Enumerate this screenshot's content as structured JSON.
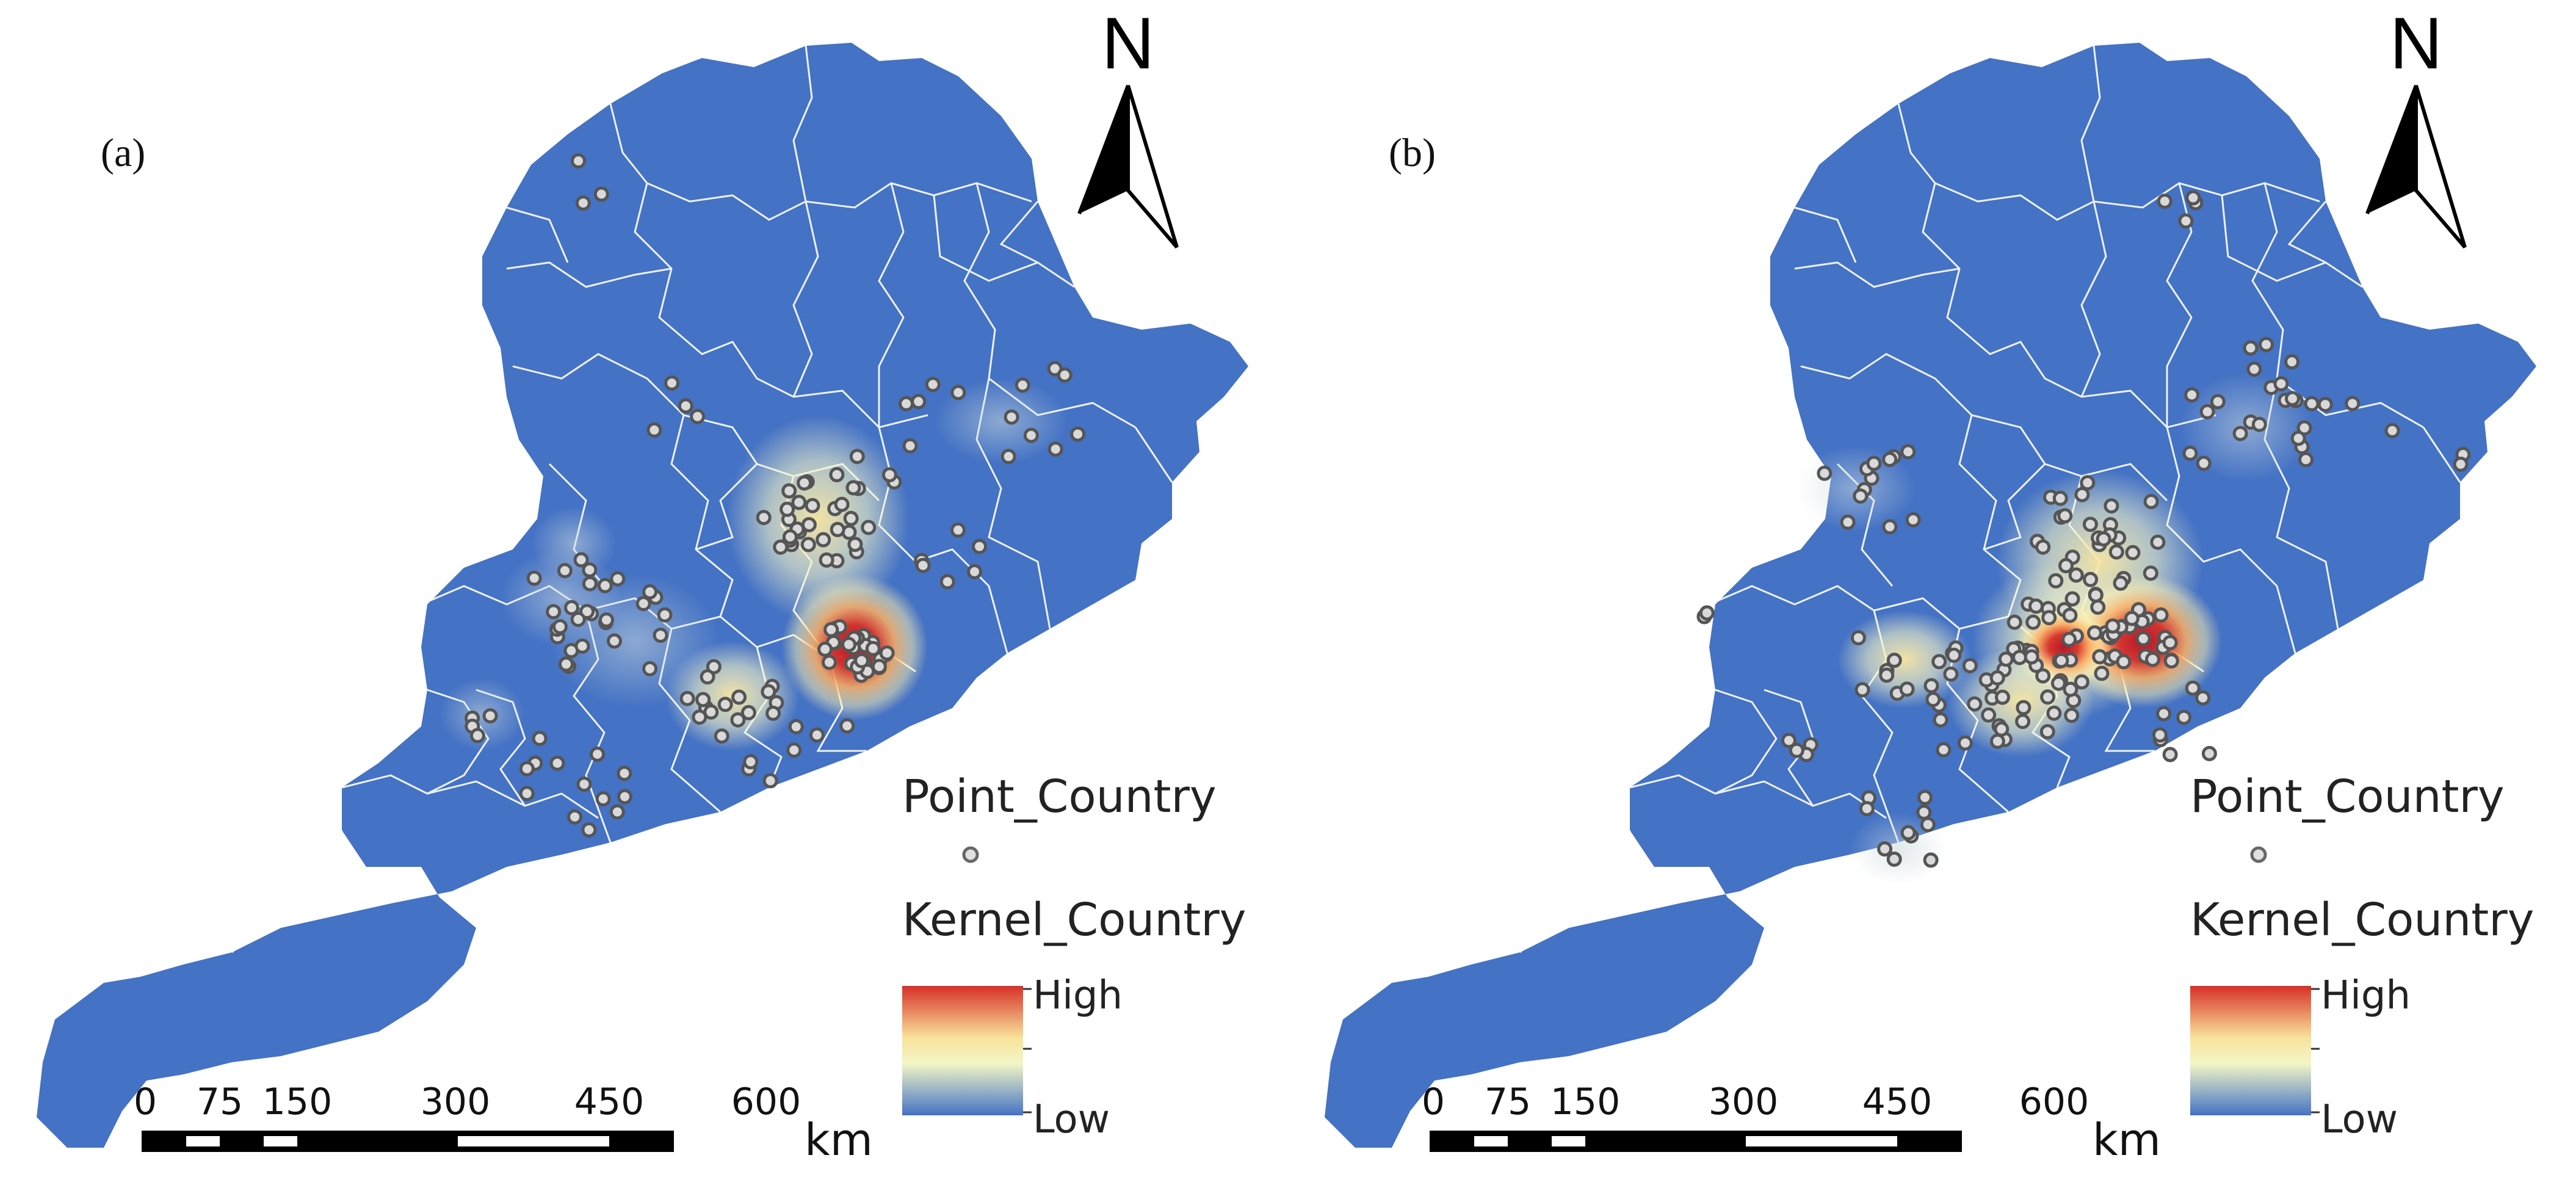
{
  "colors": {
    "background": "#ffffff",
    "land": "#4472c4",
    "boundary": "#ffffff",
    "ramp_low": "#4472c4",
    "ramp_mid_low": "#f3f6c6",
    "ramp_mid": "#f8e39a",
    "ramp_high": "#d62f27",
    "point_fill": "#d9d9d9",
    "point_stroke": "#555555"
  },
  "icons": {
    "north_arrow": "north-arrow-icon",
    "point_marker": "hollow-circle-icon"
  },
  "panels": [
    {
      "label": "(a)",
      "north_label": "N",
      "legend": {
        "point_title": "Point_Country",
        "kernel_title": "Kernel_Country",
        "high_label": "High",
        "low_label": "Low"
      },
      "scale_bar": {
        "ticks": [
          "0",
          "75",
          "150",
          "300",
          "450",
          "600"
        ],
        "unit": "km"
      }
    },
    {
      "label": "(b)",
      "north_label": "N",
      "legend": {
        "point_title": "Point_Country",
        "kernel_title": "Kernel_Country",
        "high_label": "High",
        "low_label": "Low"
      },
      "scale_bar": {
        "ticks": [
          "0",
          "75",
          "150",
          "300",
          "450",
          "600"
        ],
        "unit": "km"
      }
    }
  ]
}
